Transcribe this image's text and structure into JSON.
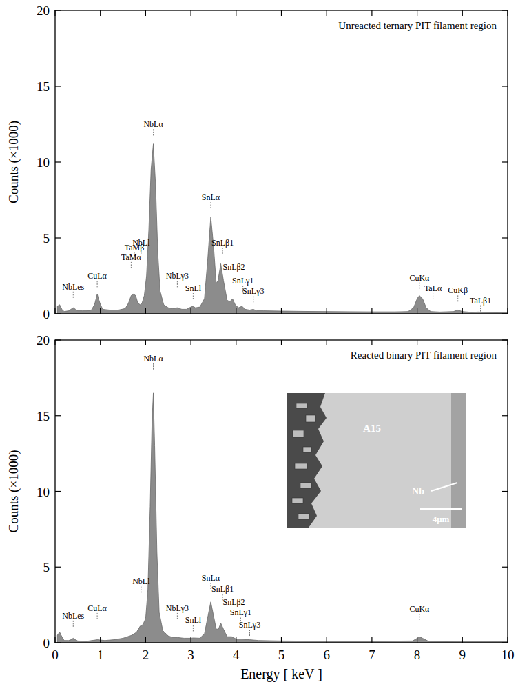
{
  "chart_data": [
    {
      "type": "area",
      "title": "Unreacted ternary PIT filament region",
      "ylabel": "Counts (×1000)",
      "color": "#8c8c8c",
      "xlim": [
        0,
        10
      ],
      "ylim": [
        0,
        20
      ],
      "xticks": [
        0,
        1,
        2,
        3,
        4,
        5,
        6,
        7,
        8,
        9,
        10
      ],
      "yticks": [
        0,
        5,
        10,
        15,
        20
      ],
      "grid": false,
      "tick_labels": "y",
      "x": [
        0.05,
        0.1,
        0.15,
        0.2,
        0.3,
        0.35,
        0.4,
        0.45,
        0.5,
        0.6,
        0.7,
        0.8,
        0.87,
        0.93,
        0.99,
        1.05,
        1.2,
        1.4,
        1.55,
        1.62,
        1.68,
        1.73,
        1.78,
        1.83,
        1.88,
        1.92,
        1.97,
        2.02,
        2.07,
        2.12,
        2.17,
        2.22,
        2.27,
        2.32,
        2.4,
        2.5,
        2.6,
        2.7,
        2.8,
        2.9,
        3,
        3.05,
        3.1,
        3.2,
        3.3,
        3.37,
        3.44,
        3.5,
        3.56,
        3.6,
        3.66,
        3.72,
        3.8,
        3.86,
        3.92,
        3.98,
        4.05,
        4.13,
        4.2,
        4.3,
        4.38,
        4.45,
        4.6,
        5,
        5.5,
        6,
        6.5,
        7,
        7.5,
        7.8,
        7.92,
        8,
        8.05,
        8.12,
        8.2,
        8.3,
        8.5,
        8.8,
        8.9,
        9,
        9.2,
        9.35,
        9.5,
        10
      ],
      "values": [
        0.5,
        0.6,
        0.3,
        0.15,
        0.2,
        0.3,
        0.4,
        0.3,
        0.2,
        0.2,
        0.2,
        0.25,
        0.6,
        1.3,
        0.7,
        0.3,
        0.25,
        0.25,
        0.35,
        0.7,
        1.2,
        1.3,
        1.2,
        0.7,
        0.6,
        0.7,
        1.2,
        2.5,
        5.5,
        9.5,
        11.2,
        8.5,
        4,
        1.5,
        0.6,
        0.4,
        0.35,
        0.4,
        0.3,
        0.3,
        0.45,
        0.5,
        0.4,
        0.45,
        1,
        3.5,
        6.4,
        4.5,
        2,
        2.2,
        3.3,
        2.2,
        0.9,
        0.8,
        1,
        0.6,
        0.4,
        0.5,
        0.3,
        0.25,
        0.3,
        0.2,
        0.2,
        0.18,
        0.16,
        0.15,
        0.14,
        0.13,
        0.13,
        0.15,
        0.4,
        1,
        1.2,
        1,
        0.4,
        0.15,
        0.12,
        0.15,
        0.25,
        0.15,
        0.1,
        0.12,
        0.1,
        0.08
      ],
      "annotations": [
        {
          "text": "NbLes",
          "x": 0.4,
          "y": 1.6
        },
        {
          "text": "CuLα",
          "x": 0.93,
          "y": 2.3
        },
        {
          "text": "TaMβ",
          "x": 1.75,
          "y": 4.2
        },
        {
          "text": "TaMα",
          "x": 1.68,
          "y": 3.55
        },
        {
          "text": "NbLl",
          "x": 1.9,
          "y": 4.5
        },
        {
          "text": "NbLα",
          "x": 2.17,
          "y": 12.3
        },
        {
          "text": "NbLγ3",
          "x": 2.7,
          "y": 2.3
        },
        {
          "text": "SnLl",
          "x": 3.05,
          "y": 1.5
        },
        {
          "text": "SnLα",
          "x": 3.44,
          "y": 7.5
        },
        {
          "text": "SnLβ1",
          "x": 3.7,
          "y": 4.5
        },
        {
          "text": "SnLβ2",
          "x": 3.95,
          "y": 2.9
        },
        {
          "text": "SnLγ1",
          "x": 4.15,
          "y": 2.0
        },
        {
          "text": "SnLγ3",
          "x": 4.38,
          "y": 1.3
        },
        {
          "text": "CuKα",
          "x": 8.05,
          "y": 2.2
        },
        {
          "text": "TaLα",
          "x": 8.35,
          "y": 1.5
        },
        {
          "text": "CuKβ",
          "x": 8.9,
          "y": 1.35
        },
        {
          "text": "TaLβ1",
          "x": 9.4,
          "y": 0.7
        }
      ]
    },
    {
      "type": "area",
      "title": "Reacted binary PIT filament region",
      "xlabel": "Energy [ keV ]",
      "ylabel": "Counts (×1000)",
      "color": "#8c8c8c",
      "xlim": [
        0,
        10
      ],
      "ylim": [
        0,
        20
      ],
      "xticks": [
        0,
        1,
        2,
        3,
        4,
        5,
        6,
        7,
        8,
        9,
        10
      ],
      "yticks": [
        0,
        5,
        10,
        15,
        20
      ],
      "grid": false,
      "x": [
        0.05,
        0.1,
        0.15,
        0.2,
        0.3,
        0.35,
        0.4,
        0.45,
        0.5,
        0.7,
        0.93,
        1.1,
        1.3,
        1.5,
        1.7,
        1.8,
        1.88,
        1.94,
        2,
        2.05,
        2.1,
        2.14,
        2.17,
        2.2,
        2.25,
        2.3,
        2.38,
        2.5,
        2.6,
        2.7,
        2.85,
        3,
        3.05,
        3.2,
        3.3,
        3.38,
        3.44,
        3.5,
        3.56,
        3.61,
        3.66,
        3.72,
        3.8,
        3.9,
        4,
        4.13,
        4.3,
        4.5,
        5,
        6,
        7,
        7.9,
        8,
        8.05,
        8.12,
        8.25,
        9,
        10
      ],
      "values": [
        0.5,
        0.7,
        0.4,
        0.15,
        0.15,
        0.2,
        0.3,
        0.2,
        0.12,
        0.1,
        0.2,
        0.15,
        0.2,
        0.3,
        0.5,
        0.7,
        1.1,
        1.2,
        1.6,
        3.5,
        9,
        14.5,
        16.5,
        13,
        6,
        2,
        0.8,
        0.45,
        0.35,
        0.35,
        0.3,
        0.3,
        0.32,
        0.3,
        0.6,
        1.8,
        2.7,
        1.8,
        0.9,
        0.9,
        1.3,
        0.9,
        0.4,
        0.4,
        0.25,
        0.25,
        0.2,
        0.15,
        0.12,
        0.1,
        0.1,
        0.12,
        0.3,
        0.4,
        0.3,
        0.1,
        0.08,
        0.07
      ],
      "annotations": [
        {
          "text": "NbLes",
          "x": 0.4,
          "y": 1.6
        },
        {
          "text": "CuLα",
          "x": 0.93,
          "y": 2.1
        },
        {
          "text": "NbLl",
          "x": 1.9,
          "y": 3.85
        },
        {
          "text": "NbLα",
          "x": 2.17,
          "y": 18.6
        },
        {
          "text": "NbLγ3",
          "x": 2.7,
          "y": 2.1
        },
        {
          "text": "SnLl",
          "x": 3.05,
          "y": 1.3
        },
        {
          "text": "SnLα",
          "x": 3.44,
          "y": 4.1
        },
        {
          "text": "SnLβ1",
          "x": 3.7,
          "y": 3.35
        },
        {
          "text": "SnLβ2",
          "x": 3.95,
          "y": 2.5
        },
        {
          "text": "SnLγ1",
          "x": 4.1,
          "y": 1.8
        },
        {
          "text": "SnLγ3",
          "x": 4.3,
          "y": 1.0
        },
        {
          "text": "CuKα",
          "x": 8.05,
          "y": 2.05
        }
      ],
      "inset_labels": [
        "A15",
        "Nb",
        "4μm"
      ]
    }
  ]
}
